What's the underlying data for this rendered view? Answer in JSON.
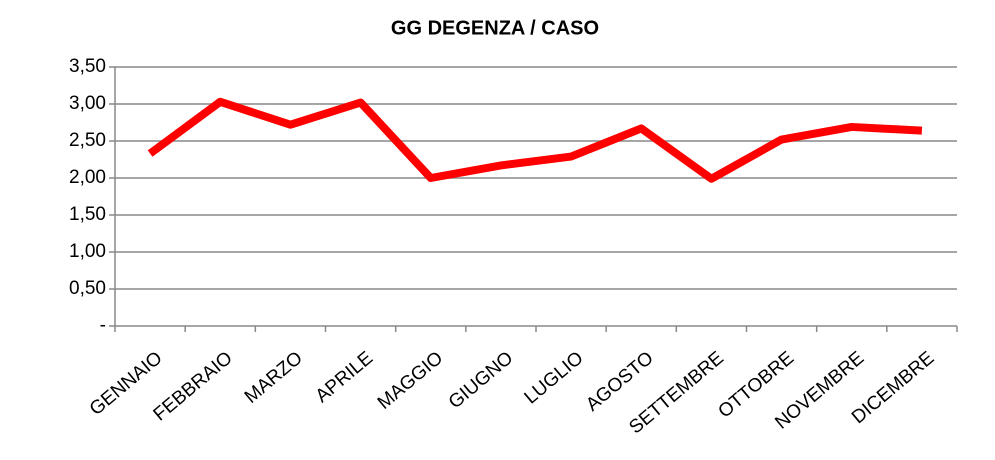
{
  "chart_data": {
    "type": "line",
    "title": "GG DEGENZA / CASO",
    "categories": [
      "GENNAIO",
      "FEBBRAIO",
      "MARZO",
      "APRILE",
      "MAGGIO",
      "GIUGNO",
      "LUGLIO",
      "AGOSTO",
      "SETTEMBRE",
      "OTTOBRE",
      "NOVEMBRE",
      "DICEMBRE"
    ],
    "values": [
      2.33,
      3.03,
      2.72,
      3.02,
      2.0,
      2.17,
      2.29,
      2.67,
      1.99,
      2.52,
      2.69,
      2.64
    ],
    "color": "#ff0000",
    "ylim": [
      0,
      3.5
    ],
    "yticks": [
      {
        "value": 0,
        "label": "-"
      },
      {
        "value": 0.5,
        "label": "0,50"
      },
      {
        "value": 1,
        "label": "1,00"
      },
      {
        "value": 1.5,
        "label": "1,50"
      },
      {
        "value": 2,
        "label": "2,00"
      },
      {
        "value": 2.5,
        "label": "2,50"
      },
      {
        "value": 3,
        "label": "3,00"
      },
      {
        "value": 3.5,
        "label": "3,50"
      }
    ],
    "grid": true
  }
}
